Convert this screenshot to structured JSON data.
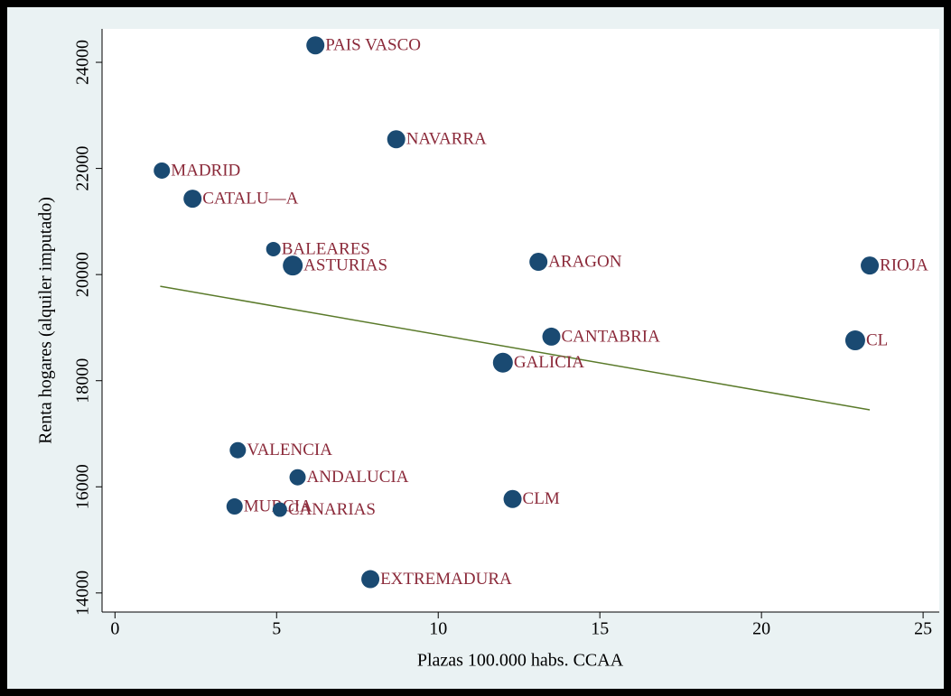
{
  "chart_data": {
    "type": "scatter",
    "x_label": "Plazas 100.000 habs. CCAA",
    "y_label": "Renta hogares (alquiler imputado)",
    "labels": [
      "PAIS VASCO",
      "NAVARRA",
      "MADRID",
      "CATALU—A",
      "BALEARES",
      "ASTURIAS",
      "ARAGON",
      "RIOJA",
      "CANTABRIA",
      "CL",
      "GALICIA",
      "VALENCIA",
      "ANDALUCIA",
      "CLM",
      "MURCIA",
      "CANARIAS",
      "EXTREMADURA"
    ],
    "x": [
      6.2,
      8.7,
      1.45,
      2.4,
      4.9,
      5.5,
      13.1,
      23.35,
      13.5,
      22.9,
      12.0,
      3.8,
      5.65,
      12.3,
      3.7,
      5.1,
      7.9
    ],
    "y": [
      24320,
      22550,
      21960,
      21430,
      20480,
      20170,
      20240,
      20170,
      18830,
      18760,
      18340,
      16690,
      16180,
      15770,
      15630,
      15570,
      14260
    ],
    "sizes": [
      10,
      10,
      9,
      10,
      8,
      11,
      10,
      10,
      10,
      11,
      11,
      9,
      9,
      10,
      9,
      8,
      10
    ],
    "color": "#1a4a72",
    "label_color": "#8b2a3a",
    "fit": {
      "x": [
        1.4,
        23.35
      ],
      "y": [
        19780,
        17450
      ],
      "color": "#5a7a2a"
    },
    "xlim": [
      -0.4,
      25.5
    ],
    "ylim": [
      13640,
      24630
    ],
    "xticks": [
      0,
      5,
      10,
      15,
      20,
      25
    ],
    "yticks": [
      14000,
      16000,
      18000,
      20000,
      22000,
      24000
    ]
  }
}
